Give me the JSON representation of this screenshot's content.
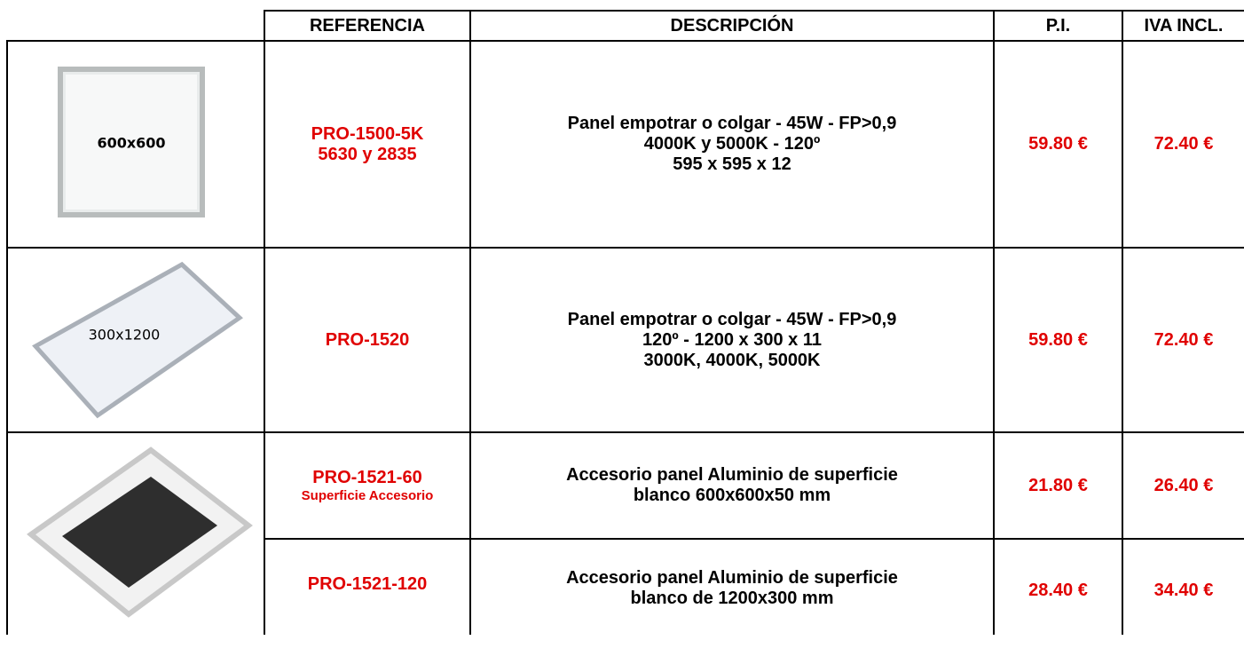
{
  "header": {
    "columns": [
      "REFERENCIA",
      "DESCRIPCIÓN",
      "P.I.",
      "IVA INCL."
    ]
  },
  "table": {
    "rows": [
      {
        "image_label": "600x600",
        "reference": [
          "PRO-1500-5K",
          "5630 y 2835"
        ],
        "description": [
          "Panel empotrar o colgar - 45W - FP>0,9",
          "4000K y 5000K - 120º",
          "595 x 595 x 12"
        ],
        "price": "59.80 €",
        "price_vat": "72.40 €"
      },
      {
        "image_label": "300x1200",
        "reference": [
          "PRO-1520"
        ],
        "description": [
          "Panel empotrar o colgar - 45W - FP>0,9",
          "120º - 1200 x 300 x 11",
          "3000K, 4000K, 5000K"
        ],
        "price": "59.80 €",
        "price_vat": "72.40 €"
      },
      {
        "reference": [
          "PRO-1521-60"
        ],
        "subreference": "Superficie Accesorio",
        "description": [
          "Accesorio panel Aluminio de superficie",
          "blanco 600x600x50 mm"
        ],
        "price": "21.80 €",
        "price_vat": "26.40 €"
      },
      {
        "reference": [
          "PRO-1521-120"
        ],
        "description": [
          "Accesorio panel Aluminio de superficie",
          "blanco de 1200x300 mm"
        ],
        "price": "28.40 €",
        "price_vat": "34.40 €"
      }
    ]
  }
}
